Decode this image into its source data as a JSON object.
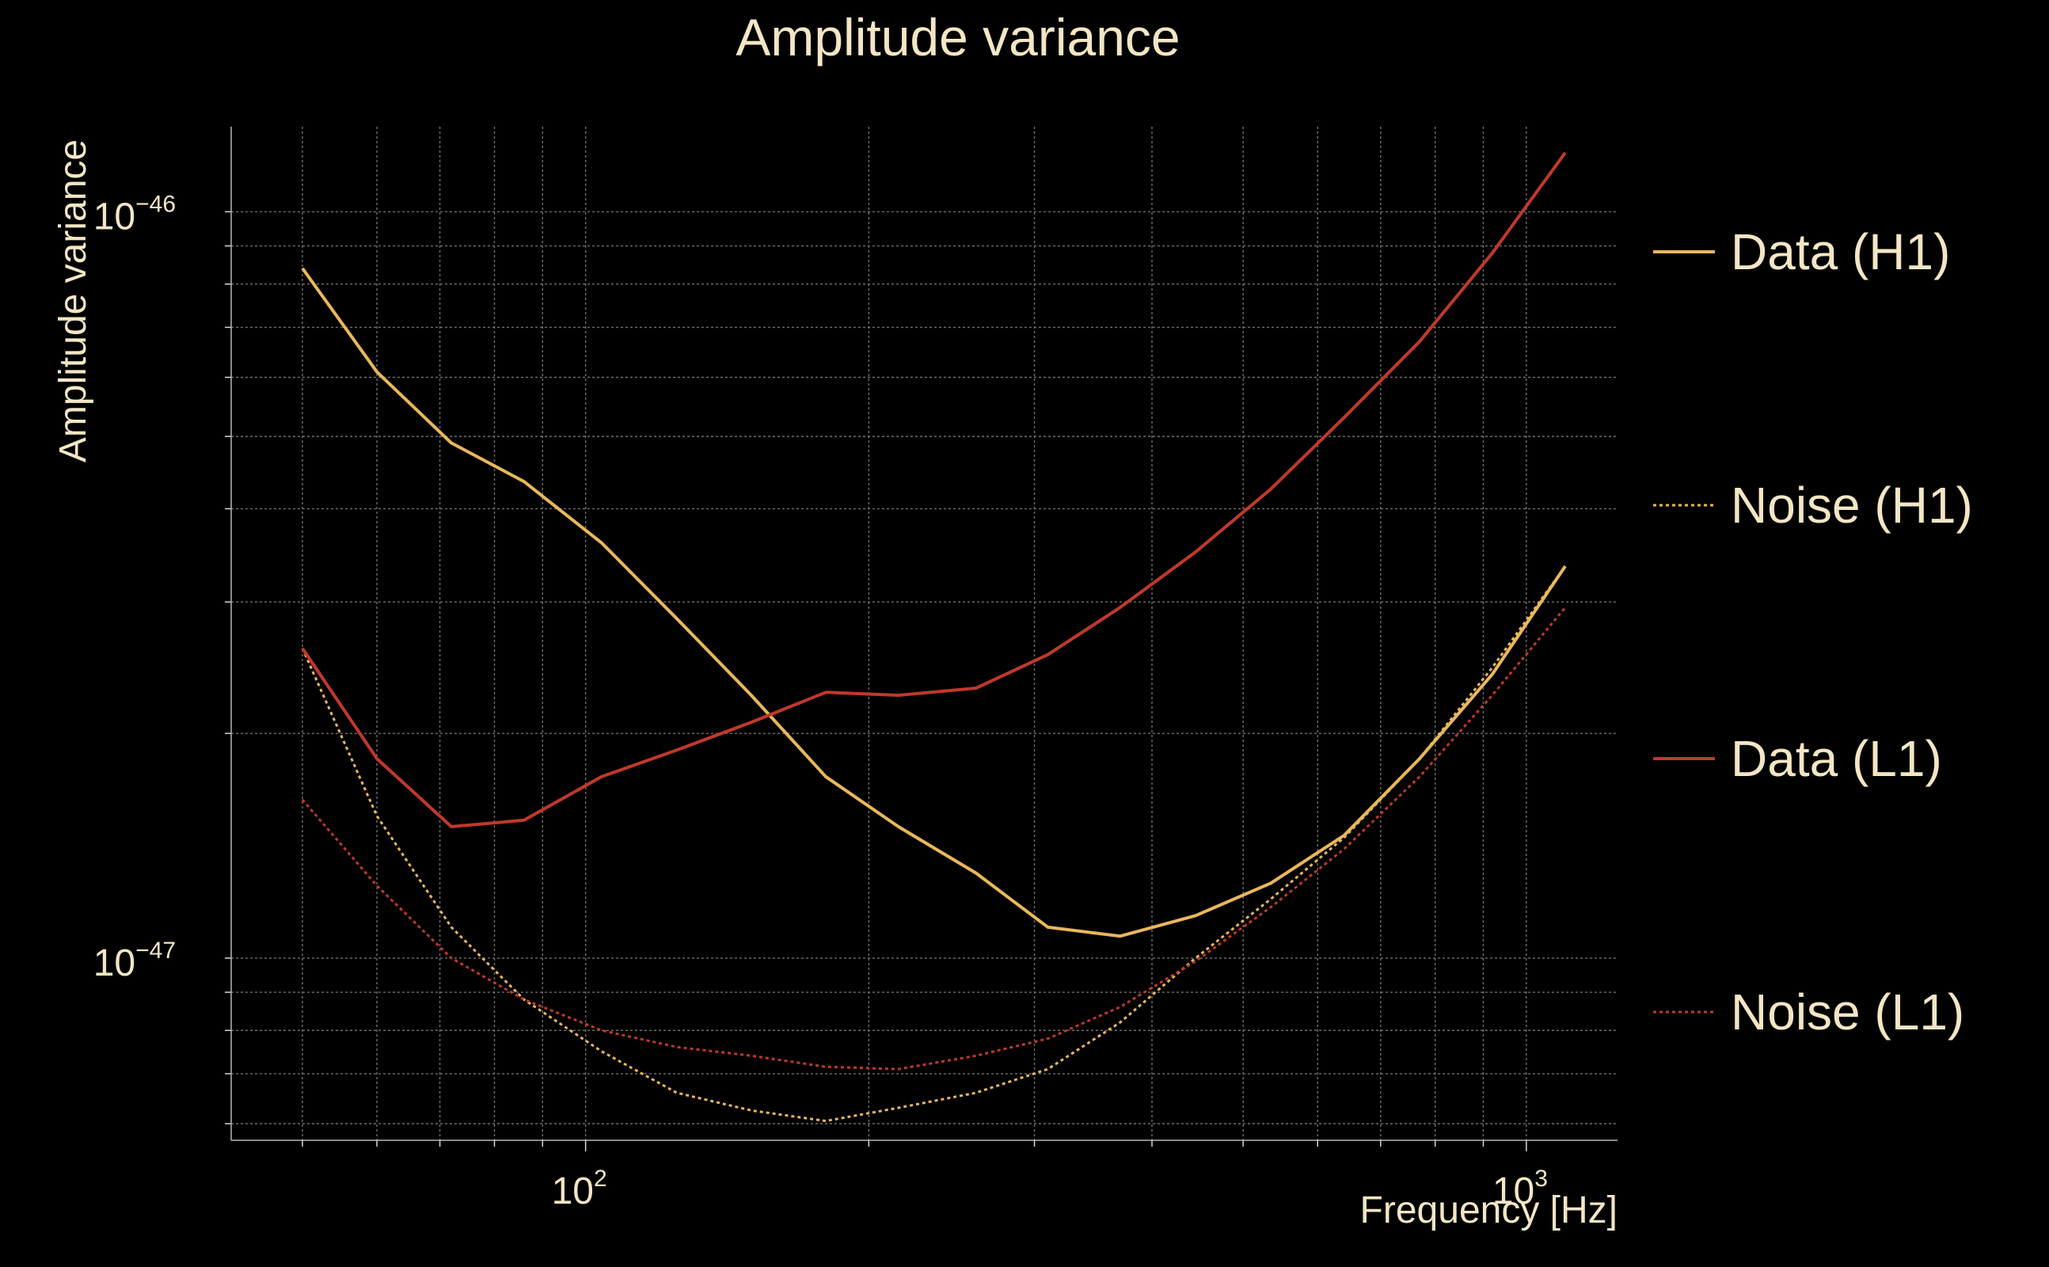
{
  "chart_data": {
    "type": "line",
    "title": "Amplitude variance",
    "xlabel": "Frequency [Hz]",
    "ylabel": "Amplitude variance",
    "xscale": "log",
    "yscale": "log",
    "xlim": [
      42,
      1250
    ],
    "ylim": [
      5.7e-48,
      1.3e-46
    ],
    "grid": true,
    "legend_position": "right",
    "x_tick_labels": [
      {
        "value": 100,
        "base": "10",
        "exp": "2"
      },
      {
        "value": 1000,
        "base": "10",
        "exp": "3"
      }
    ],
    "y_tick_labels": [
      {
        "value": 1e-47,
        "base": "10",
        "exp": "−47"
      },
      {
        "value": 1e-46,
        "base": "10",
        "exp": "−46"
      }
    ],
    "x": [
      50,
      60,
      72,
      86,
      104,
      125,
      150,
      180,
      215,
      260,
      310,
      370,
      445,
      535,
      640,
      770,
      920,
      1100
    ],
    "series": [
      {
        "name": "Data (H1)",
        "color": "#e8b85a",
        "style": "solid",
        "values": [
          8.4e-47,
          6.1e-47,
          4.9e-47,
          4.35e-47,
          3.6e-47,
          2.85e-47,
          2.25e-47,
          1.75e-47,
          1.5e-47,
          1.3e-47,
          1.1e-47,
          1.07e-47,
          1.14e-47,
          1.26e-47,
          1.46e-47,
          1.85e-47,
          2.4e-47,
          3.35e-47
        ]
      },
      {
        "name": "Noise (H1)",
        "color": "#e8b85a",
        "style": "dotted",
        "values": [
          2.6e-47,
          1.55e-47,
          1.1e-47,
          8.8e-48,
          7.5e-48,
          6.6e-48,
          6.25e-48,
          6.05e-48,
          6.3e-48,
          6.6e-48,
          7.1e-48,
          8.2e-48,
          1e-47,
          1.2e-47,
          1.45e-47,
          1.85e-47,
          2.45e-47,
          3.35e-47
        ]
      },
      {
        "name": "Data (L1)",
        "color": "#c0392b",
        "style": "solid",
        "values": [
          2.6e-47,
          1.85e-47,
          1.5e-47,
          1.53e-47,
          1.75e-47,
          1.9e-47,
          2.07e-47,
          2.27e-47,
          2.25e-47,
          2.3e-47,
          2.55e-47,
          2.95e-47,
          3.5e-47,
          4.25e-47,
          5.3e-47,
          6.7e-47,
          8.8e-47,
          1.2e-46
        ]
      },
      {
        "name": "Noise (L1)",
        "color": "#c0392b",
        "style": "dotted",
        "values": [
          1.63e-47,
          1.25e-47,
          1e-47,
          8.8e-48,
          8e-48,
          7.6e-48,
          7.4e-48,
          7.15e-48,
          7.1e-48,
          7.4e-48,
          7.8e-48,
          8.6e-48,
          9.9e-48,
          1.17e-47,
          1.4e-47,
          1.75e-47,
          2.25e-47,
          2.95e-47
        ]
      }
    ]
  }
}
